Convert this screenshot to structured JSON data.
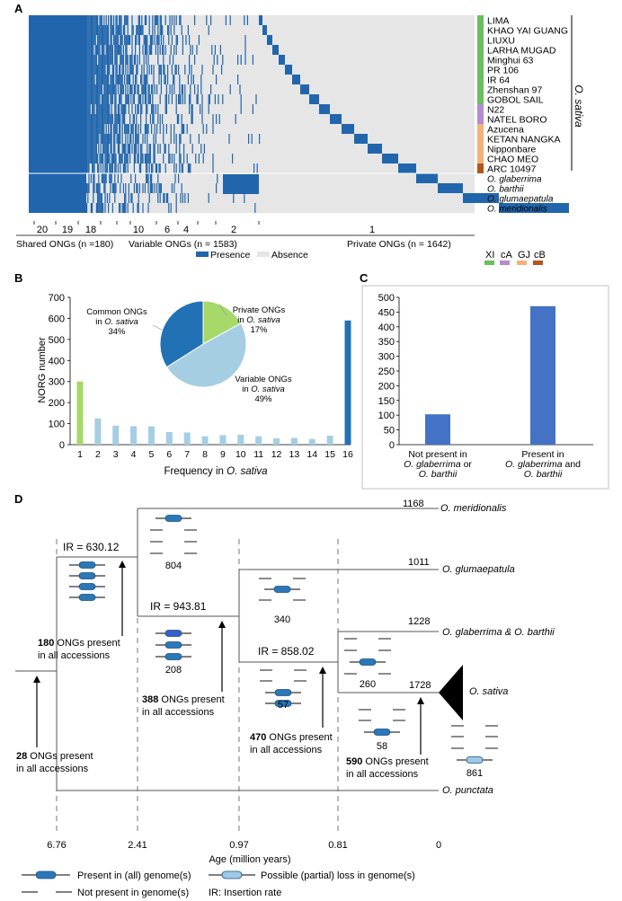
{
  "panel_a": {
    "label": "A",
    "accessions": [
      "LIMA",
      "KHAO YAI GUANG",
      "LIUXU",
      "LARHA MUGAD",
      "Minghui 63",
      "PR 106",
      "IR 64",
      "Zhenshan 97",
      "GOBOL SAIL",
      "N22",
      "NATEL BORO",
      "Azucena",
      "KETAN NANGKA",
      "Nipponbare",
      "CHAO MEO",
      "ARC 10497",
      "O. glaberrima",
      "O. barthii",
      "O. glumaepatula",
      "O. meridionalis"
    ],
    "species_label": "O. sativa",
    "freq_ticks": [
      "20",
      "19",
      "18",
      "10",
      "6",
      "4",
      "2",
      "1"
    ],
    "shared_label": "Shared ONGs (n =180)",
    "variable_label": "Variable ONGs (n = 1583)",
    "private_label": "Private ONGs (n = 1642)",
    "legend_presence": "Presence",
    "legend_absence": "Absence",
    "groups": [
      "XI",
      "cA",
      "GJ",
      "cB"
    ],
    "group_colors": [
      "#6abf5e",
      "#b48ccf",
      "#f2b27a",
      "#b5561c"
    ],
    "presence_color": "#2166ac",
    "absence_color": "#e6e6e6"
  },
  "chart_data": [
    {
      "panel": "B",
      "type": "bar",
      "ylabel": "NORG number",
      "xlabel": "Frequency in O. sativa",
      "ylim": [
        0,
        700
      ],
      "yticks": [
        "0",
        "100",
        "200",
        "300",
        "400",
        "500",
        "600",
        "700"
      ],
      "categories": [
        "1",
        "2",
        "3",
        "4",
        "5",
        "6",
        "7",
        "8",
        "9",
        "10",
        "11",
        "12",
        "13",
        "14",
        "15",
        "16"
      ],
      "values": [
        300,
        125,
        90,
        88,
        87,
        60,
        58,
        40,
        45,
        47,
        40,
        30,
        32,
        27,
        43,
        590
      ],
      "colors": [
        "#a6d96a",
        "#a6cee3",
        "#a6cee3",
        "#a6cee3",
        "#a6cee3",
        "#a6cee3",
        "#a6cee3",
        "#a6cee3",
        "#a6cee3",
        "#a6cee3",
        "#a6cee3",
        "#a6cee3",
        "#a6cee3",
        "#a6cee3",
        "#a6cee3",
        "#2171b5"
      ],
      "pie": {
        "slices": [
          {
            "name_line1": "Common ONGs",
            "name_line2": "in O. sativa",
            "pct": 34,
            "pct_label": "34%",
            "color": "#2171b5"
          },
          {
            "name_line1": "Private ONGs",
            "name_line2": "in O. sativa",
            "pct": 17,
            "pct_label": "17%",
            "color": "#a6d96a"
          },
          {
            "name_line1": "Variable ONGs",
            "name_line2": "in O. sativa",
            "pct": 49,
            "pct_label": "49%",
            "color": "#a6cee3"
          }
        ]
      }
    },
    {
      "panel": "C",
      "type": "bar",
      "ylim": [
        0,
        500
      ],
      "yticks": [
        "0",
        "50",
        "100",
        "150",
        "200",
        "250",
        "300",
        "350",
        "400",
        "450",
        "500"
      ],
      "categories": [
        "Not present in O. glaberrima or O. barthii",
        "Present in O. glaberrima and O. barthii"
      ],
      "values": [
        103,
        470
      ],
      "color": "#4472c4",
      "cat_lines": [
        [
          "Not present in",
          "O. glaberrima",
          " or",
          "O. barthii"
        ],
        [
          "Present in",
          "O. glaberrima",
          " and",
          "O. barthii"
        ]
      ]
    }
  ],
  "panel_d": {
    "label": "D",
    "tips": [
      {
        "count": "1168",
        "species": "O. meridionalis"
      },
      {
        "count": "1011",
        "species": "O. glumaepatula"
      },
      {
        "count": "1228",
        "species": "O. glaberrima & O. barthii"
      },
      {
        "count": "1728",
        "species": "O. sativa"
      },
      {
        "count": "",
        "species": "O. punctata"
      }
    ],
    "ir": [
      "IR = 630.12",
      "IR = 943.81",
      "IR = 858.02"
    ],
    "gene_counts": [
      "804",
      "208",
      "340",
      "57",
      "260",
      "58",
      "861"
    ],
    "present": [
      {
        "n": "28",
        "text1": " ONGs present",
        "text2": "in all accessions"
      },
      {
        "n": "180",
        "text1": " ONGs present",
        "text2": "in all accessions"
      },
      {
        "n": "388",
        "text1": " ONGs present",
        "text2": "in all accessions"
      },
      {
        "n": "470",
        "text1": " ONGs present",
        "text2": "in all accessions"
      },
      {
        "n": "590",
        "text1": " ONGs present",
        "text2": "in all accessions"
      }
    ],
    "ages": [
      "6.76",
      "2.41",
      "0.97",
      "0.81",
      "0"
    ],
    "age_axis_label": "Age (million years)",
    "legend": {
      "present": "Present in (all) genome(s)",
      "partial": "Possible (partial) loss in genome(s)",
      "absent": "Not present in genome(s)",
      "ir_def": "IR: Insertion rate"
    }
  }
}
